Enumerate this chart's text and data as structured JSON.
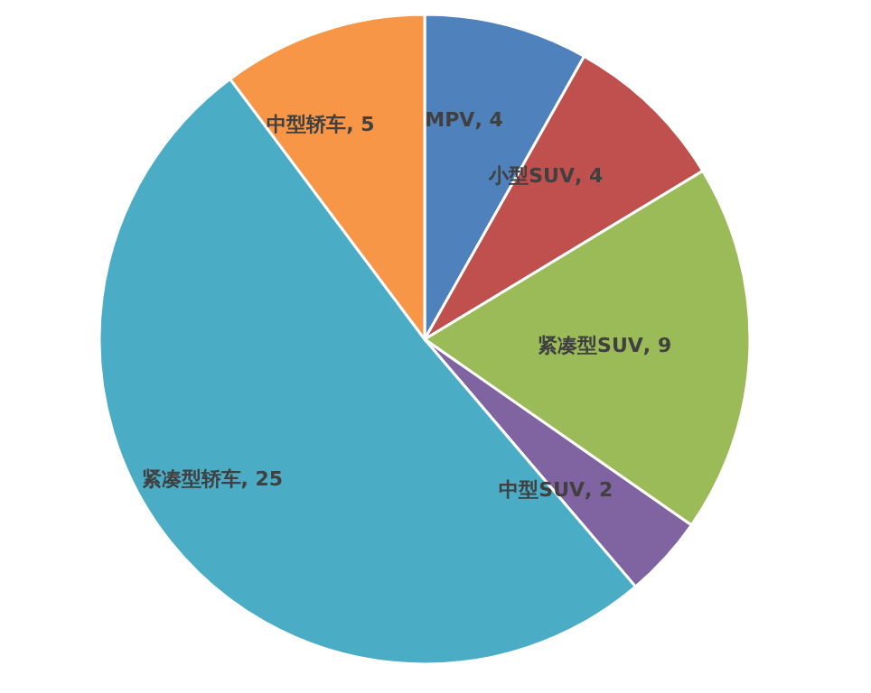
{
  "chart_data": {
    "type": "pie",
    "categories": [
      "MPV",
      "小型SUV",
      "紧凑型SUV",
      "中型SUV",
      "紧凑型轿车",
      "中型轿车"
    ],
    "values": [
      4,
      4,
      9,
      2,
      25,
      5
    ],
    "colors": [
      "#4f81bd",
      "#c0504d",
      "#9bbb59",
      "#8064a2",
      "#4bacc6",
      "#f79646"
    ],
    "value_labels": [
      ", 4",
      ", 4",
      ", 9",
      ", 2",
      ", 25",
      ", 5"
    ],
    "legend": false
  }
}
